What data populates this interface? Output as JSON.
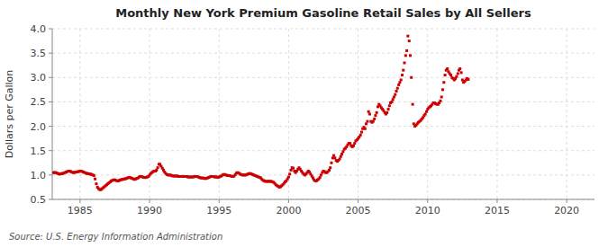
{
  "chart_data": {
    "type": "scatter",
    "title": "Monthly New York Premium Gasoline Retail Sales by All Sellers",
    "ylabel": "Dollars per Gallon",
    "source": "Source: U.S. Energy Information Administration",
    "color": "#cc0000",
    "marker": "square",
    "grid": true,
    "xlim": [
      1983.0,
      2022.0
    ],
    "ylim": [
      0.5,
      4.0
    ],
    "xticks": [
      1985,
      1990,
      1995,
      2000,
      2005,
      2010,
      2015,
      2020
    ],
    "yticks": [
      0.5,
      {
        "value": 1.0,
        "label": "1.0"
      },
      1.5,
      {
        "value": 2.0,
        "label": "2.0"
      },
      2.5,
      {
        "value": 3.0,
        "label": "3.0"
      },
      3.5,
      {
        "value": 4.0,
        "label": "4.0"
      }
    ],
    "x": [
      1983.08,
      1983.17,
      1983.25,
      1983.33,
      1983.42,
      1983.5,
      1983.58,
      1983.67,
      1983.75,
      1983.83,
      1983.92,
      1984.0,
      1984.08,
      1984.17,
      1984.25,
      1984.33,
      1984.42,
      1984.5,
      1984.58,
      1984.67,
      1984.75,
      1984.83,
      1984.92,
      1985.0,
      1985.08,
      1985.17,
      1985.25,
      1985.33,
      1985.42,
      1985.5,
      1985.58,
      1985.67,
      1985.75,
      1985.83,
      1985.92,
      1986.0,
      1986.08,
      1986.17,
      1986.25,
      1986.33,
      1986.42,
      1986.5,
      1986.58,
      1986.67,
      1986.75,
      1986.83,
      1986.92,
      1987.0,
      1987.08,
      1987.17,
      1987.25,
      1987.33,
      1987.42,
      1987.5,
      1987.58,
      1987.67,
      1987.75,
      1987.83,
      1987.92,
      1988.0,
      1988.08,
      1988.17,
      1988.25,
      1988.33,
      1988.42,
      1988.5,
      1988.58,
      1988.67,
      1988.75,
      1988.83,
      1988.92,
      1989.0,
      1989.08,
      1989.17,
      1989.25,
      1989.33,
      1989.42,
      1989.5,
      1989.58,
      1989.67,
      1989.75,
      1989.83,
      1989.92,
      1990.0,
      1990.08,
      1990.17,
      1990.25,
      1990.33,
      1990.42,
      1990.5,
      1990.58,
      1990.67,
      1990.75,
      1990.83,
      1990.92,
      1991.0,
      1991.08,
      1991.17,
      1991.25,
      1991.33,
      1991.42,
      1991.5,
      1991.58,
      1991.67,
      1991.75,
      1991.83,
      1991.92,
      1992.0,
      1992.08,
      1992.17,
      1992.25,
      1992.33,
      1992.42,
      1992.5,
      1992.58,
      1992.67,
      1992.75,
      1992.83,
      1992.92,
      1993.0,
      1993.08,
      1993.17,
      1993.25,
      1993.33,
      1993.42,
      1993.5,
      1993.58,
      1993.67,
      1993.75,
      1993.83,
      1993.92,
      1994.0,
      1994.08,
      1994.17,
      1994.25,
      1994.33,
      1994.42,
      1994.5,
      1994.58,
      1994.67,
      1994.75,
      1994.83,
      1994.92,
      1995.0,
      1995.08,
      1995.17,
      1995.25,
      1995.33,
      1995.42,
      1995.5,
      1995.58,
      1995.67,
      1995.75,
      1995.83,
      1995.92,
      1996.0,
      1996.08,
      1996.17,
      1996.25,
      1996.33,
      1996.42,
      1996.5,
      1996.58,
      1996.67,
      1996.75,
      1996.83,
      1996.92,
      1997.0,
      1997.08,
      1997.17,
      1997.25,
      1997.33,
      1997.42,
      1997.5,
      1997.58,
      1997.67,
      1997.75,
      1997.83,
      1997.92,
      1998.0,
      1998.08,
      1998.17,
      1998.25,
      1998.33,
      1998.42,
      1998.5,
      1998.58,
      1998.67,
      1998.75,
      1998.83,
      1998.92,
      1999.0,
      1999.08,
      1999.17,
      1999.25,
      1999.33,
      1999.42,
      1999.5,
      1999.58,
      1999.67,
      1999.75,
      1999.83,
      1999.92,
      2000.0,
      2000.08,
      2000.17,
      2000.25,
      2000.33,
      2000.42,
      2000.5,
      2000.58,
      2000.67,
      2000.75,
      2000.83,
      2000.92,
      2001.0,
      2001.08,
      2001.17,
      2001.25,
      2001.33,
      2001.42,
      2001.5,
      2001.58,
      2001.67,
      2001.75,
      2001.83,
      2001.92,
      2002.0,
      2002.08,
      2002.17,
      2002.25,
      2002.33,
      2002.42,
      2002.5,
      2002.58,
      2002.67,
      2002.75,
      2002.83,
      2002.92,
      2003.0,
      2003.08,
      2003.17,
      2003.25,
      2003.33,
      2003.42,
      2003.5,
      2003.58,
      2003.67,
      2003.75,
      2003.83,
      2003.92,
      2004.0,
      2004.08,
      2004.17,
      2004.25,
      2004.33,
      2004.42,
      2004.5,
      2004.58,
      2004.67,
      2004.75,
      2004.83,
      2004.92,
      2005.0,
      2005.08,
      2005.17,
      2005.25,
      2005.33,
      2005.42,
      2005.5,
      2005.58,
      2005.67,
      2005.75,
      2005.83,
      2005.92,
      2006.0,
      2006.08,
      2006.17,
      2006.25,
      2006.33,
      2006.42,
      2006.5,
      2006.58,
      2006.67,
      2006.75,
      2006.83,
      2006.92,
      2007.0,
      2007.08,
      2007.17,
      2007.25,
      2007.33,
      2007.42,
      2007.5,
      2007.58,
      2007.67,
      2007.75,
      2007.83,
      2007.92,
      2008.0,
      2008.08,
      2008.17,
      2008.25,
      2008.33,
      2008.42,
      2008.5,
      2008.58,
      2008.67,
      2008.75,
      2008.83,
      2008.92,
      2009.0,
      2009.08,
      2009.17,
      2009.25,
      2009.33,
      2009.42,
      2009.5,
      2009.58,
      2009.67,
      2009.75,
      2009.83,
      2009.92,
      2010.0,
      2010.08,
      2010.17,
      2010.25,
      2010.33,
      2010.42,
      2010.5,
      2010.58,
      2010.67,
      2010.75,
      2010.83,
      2010.92,
      2011.0,
      2011.08,
      2011.17,
      2011.25,
      2011.33,
      2011.42,
      2011.5,
      2011.58,
      2011.67,
      2011.75,
      2011.83,
      2011.92,
      2012.0,
      2012.08,
      2012.17,
      2012.25,
      2012.33,
      2012.42,
      2012.5,
      2012.58,
      2012.67,
      2012.75,
      2012.83,
      2012.92
    ],
    "values": [
      1.05,
      1.05,
      1.05,
      1.04,
      1.03,
      1.02,
      1.02,
      1.03,
      1.03,
      1.04,
      1.05,
      1.06,
      1.07,
      1.08,
      1.08,
      1.07,
      1.06,
      1.05,
      1.05,
      1.06,
      1.06,
      1.07,
      1.07,
      1.08,
      1.08,
      1.07,
      1.06,
      1.05,
      1.04,
      1.03,
      1.03,
      1.02,
      1.02,
      1.01,
      1.0,
      0.99,
      0.92,
      0.82,
      0.75,
      0.72,
      0.7,
      0.7,
      0.72,
      0.74,
      0.76,
      0.78,
      0.8,
      0.82,
      0.84,
      0.86,
      0.88,
      0.89,
      0.9,
      0.9,
      0.89,
      0.88,
      0.88,
      0.89,
      0.9,
      0.91,
      0.91,
      0.92,
      0.92,
      0.93,
      0.94,
      0.95,
      0.95,
      0.94,
      0.93,
      0.92,
      0.91,
      0.92,
      0.93,
      0.94,
      0.96,
      0.97,
      0.97,
      0.96,
      0.95,
      0.95,
      0.95,
      0.96,
      0.97,
      1.0,
      1.03,
      1.05,
      1.07,
      1.08,
      1.08,
      1.1,
      1.15,
      1.22,
      1.22,
      1.18,
      1.14,
      1.1,
      1.06,
      1.03,
      1.01,
      1.0,
      1.0,
      1.0,
      0.99,
      0.98,
      0.98,
      0.98,
      0.98,
      0.98,
      0.97,
      0.97,
      0.97,
      0.97,
      0.97,
      0.97,
      0.97,
      0.97,
      0.96,
      0.96,
      0.96,
      0.96,
      0.96,
      0.96,
      0.97,
      0.97,
      0.97,
      0.96,
      0.95,
      0.94,
      0.94,
      0.94,
      0.93,
      0.93,
      0.93,
      0.94,
      0.95,
      0.96,
      0.97,
      0.97,
      0.97,
      0.96,
      0.96,
      0.96,
      0.95,
      0.96,
      0.97,
      0.98,
      1.0,
      1.01,
      1.01,
      1.0,
      0.99,
      0.99,
      0.99,
      0.98,
      0.97,
      0.97,
      0.98,
      1.01,
      1.04,
      1.05,
      1.04,
      1.02,
      1.01,
      1.0,
      1.0,
      1.0,
      1.0,
      1.01,
      1.02,
      1.03,
      1.03,
      1.02,
      1.01,
      1.0,
      0.99,
      0.98,
      0.97,
      0.96,
      0.95,
      0.94,
      0.91,
      0.89,
      0.88,
      0.87,
      0.87,
      0.87,
      0.87,
      0.87,
      0.87,
      0.86,
      0.85,
      0.83,
      0.8,
      0.78,
      0.77,
      0.75,
      0.76,
      0.78,
      0.8,
      0.83,
      0.86,
      0.88,
      0.92,
      0.96,
      1.02,
      1.1,
      1.15,
      1.14,
      1.08,
      1.05,
      1.08,
      1.12,
      1.15,
      1.12,
      1.08,
      1.05,
      1.02,
      1.0,
      1.02,
      1.05,
      1.08,
      1.06,
      1.02,
      0.98,
      0.94,
      0.9,
      0.88,
      0.88,
      0.9,
      0.92,
      0.95,
      1.0,
      1.05,
      1.08,
      1.07,
      1.05,
      1.05,
      1.07,
      1.1,
      1.15,
      1.25,
      1.35,
      1.4,
      1.35,
      1.3,
      1.28,
      1.3,
      1.33,
      1.38,
      1.43,
      1.48,
      1.53,
      1.55,
      1.58,
      1.62,
      1.65,
      1.65,
      1.6,
      1.58,
      1.6,
      1.65,
      1.7,
      1.72,
      1.75,
      1.78,
      1.82,
      1.88,
      1.95,
      1.98,
      1.95,
      2.05,
      2.1,
      2.3,
      2.25,
      2.1,
      2.08,
      2.1,
      2.15,
      2.22,
      2.28,
      2.4,
      2.45,
      2.42,
      2.38,
      2.35,
      2.32,
      2.28,
      2.25,
      2.28,
      2.35,
      2.42,
      2.48,
      2.5,
      2.55,
      2.6,
      2.65,
      2.72,
      2.78,
      2.85,
      2.9,
      2.95,
      3.05,
      3.15,
      3.3,
      3.45,
      3.55,
      3.85,
      3.75,
      3.45,
      3.0,
      2.45,
      2.05,
      2.0,
      2.02,
      2.05,
      2.08,
      2.1,
      2.12,
      2.15,
      2.18,
      2.22,
      2.25,
      2.3,
      2.35,
      2.38,
      2.4,
      2.42,
      2.45,
      2.48,
      2.48,
      2.46,
      2.45,
      2.45,
      2.48,
      2.52,
      2.6,
      2.75,
      2.9,
      3.05,
      3.15,
      3.18,
      3.12,
      3.08,
      3.05,
      3.0,
      2.98,
      2.95,
      2.98,
      3.02,
      3.08,
      3.15,
      3.18,
      3.1,
      2.95,
      2.9,
      2.92,
      2.95,
      2.98,
      2.96
    ]
  }
}
